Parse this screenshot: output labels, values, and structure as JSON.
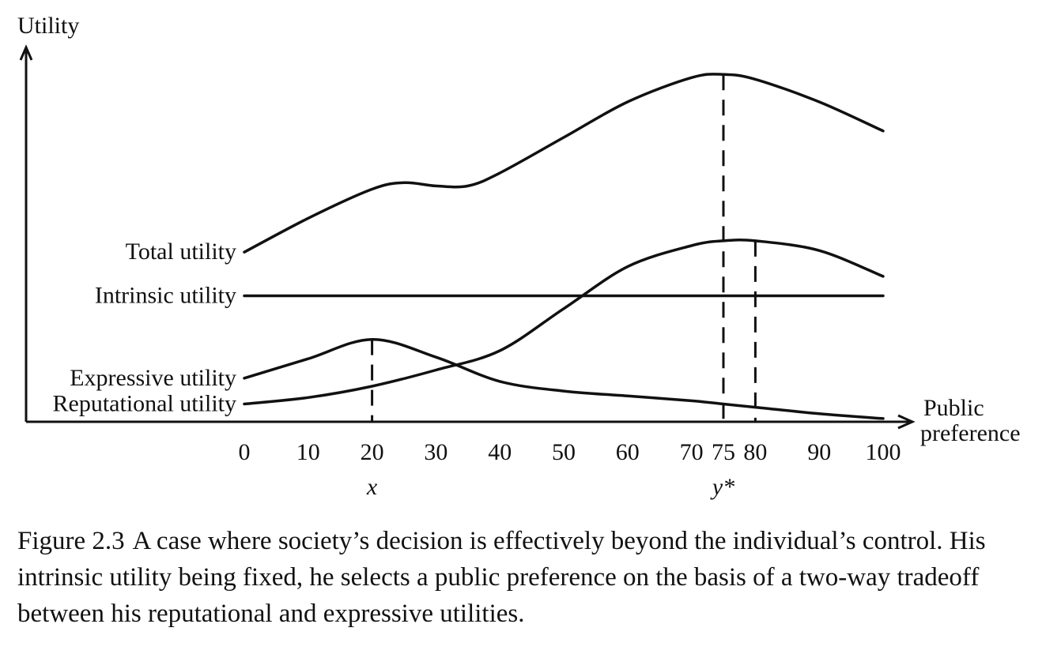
{
  "chart_data": {
    "type": "line",
    "ylabel": "Utility",
    "xlabel": [
      "Public",
      "preference"
    ],
    "xlim": [
      0,
      100
    ],
    "ylim": [
      0,
      11
    ],
    "grid": false,
    "legend": "none",
    "x_ticks": [
      0,
      10,
      20,
      30,
      40,
      50,
      60,
      70,
      75,
      80,
      90,
      100
    ],
    "series": [
      {
        "name": "Total utility",
        "x": [
          0,
          10,
          20,
          25,
          30,
          35,
          40,
          50,
          60,
          70,
          75,
          80,
          90,
          100
        ],
        "y": [
          5.25,
          6.3,
          7.2,
          7.4,
          7.3,
          7.3,
          7.7,
          8.8,
          9.9,
          10.65,
          10.75,
          10.6,
          9.9,
          9.0
        ]
      },
      {
        "name": "Intrinsic utility",
        "x": [
          0,
          100
        ],
        "y": [
          3.9,
          3.9
        ]
      },
      {
        "name": "Expressive utility",
        "x": [
          0,
          10,
          20,
          30,
          40,
          50,
          60,
          70,
          75,
          80,
          90,
          100
        ],
        "y": [
          1.35,
          1.95,
          2.55,
          2.0,
          1.25,
          0.95,
          0.8,
          0.65,
          0.55,
          0.45,
          0.25,
          0.1
        ]
      },
      {
        "name": "Reputational utility",
        "x": [
          0,
          10,
          20,
          30,
          40,
          50,
          60,
          70,
          75,
          80,
          90,
          100
        ],
        "y": [
          0.55,
          0.75,
          1.1,
          1.6,
          2.2,
          3.5,
          4.8,
          5.45,
          5.6,
          5.6,
          5.3,
          4.5
        ]
      }
    ],
    "reference_lines": [
      {
        "x": 20,
        "from_series": "Expressive utility",
        "label": "x"
      },
      {
        "x": 75,
        "from_series": "Total utility",
        "label": "y*"
      },
      {
        "x": 80,
        "from_series": "Reputational utility",
        "label": ""
      }
    ]
  },
  "caption": {
    "number": "Figure 2.3",
    "text": "A case where society’s decision is effectively beyond the individual’s control. His intrinsic utility being fixed, he selects a public preference on the basis of a two-way tradeoff between his reputational and expressive utilities."
  }
}
